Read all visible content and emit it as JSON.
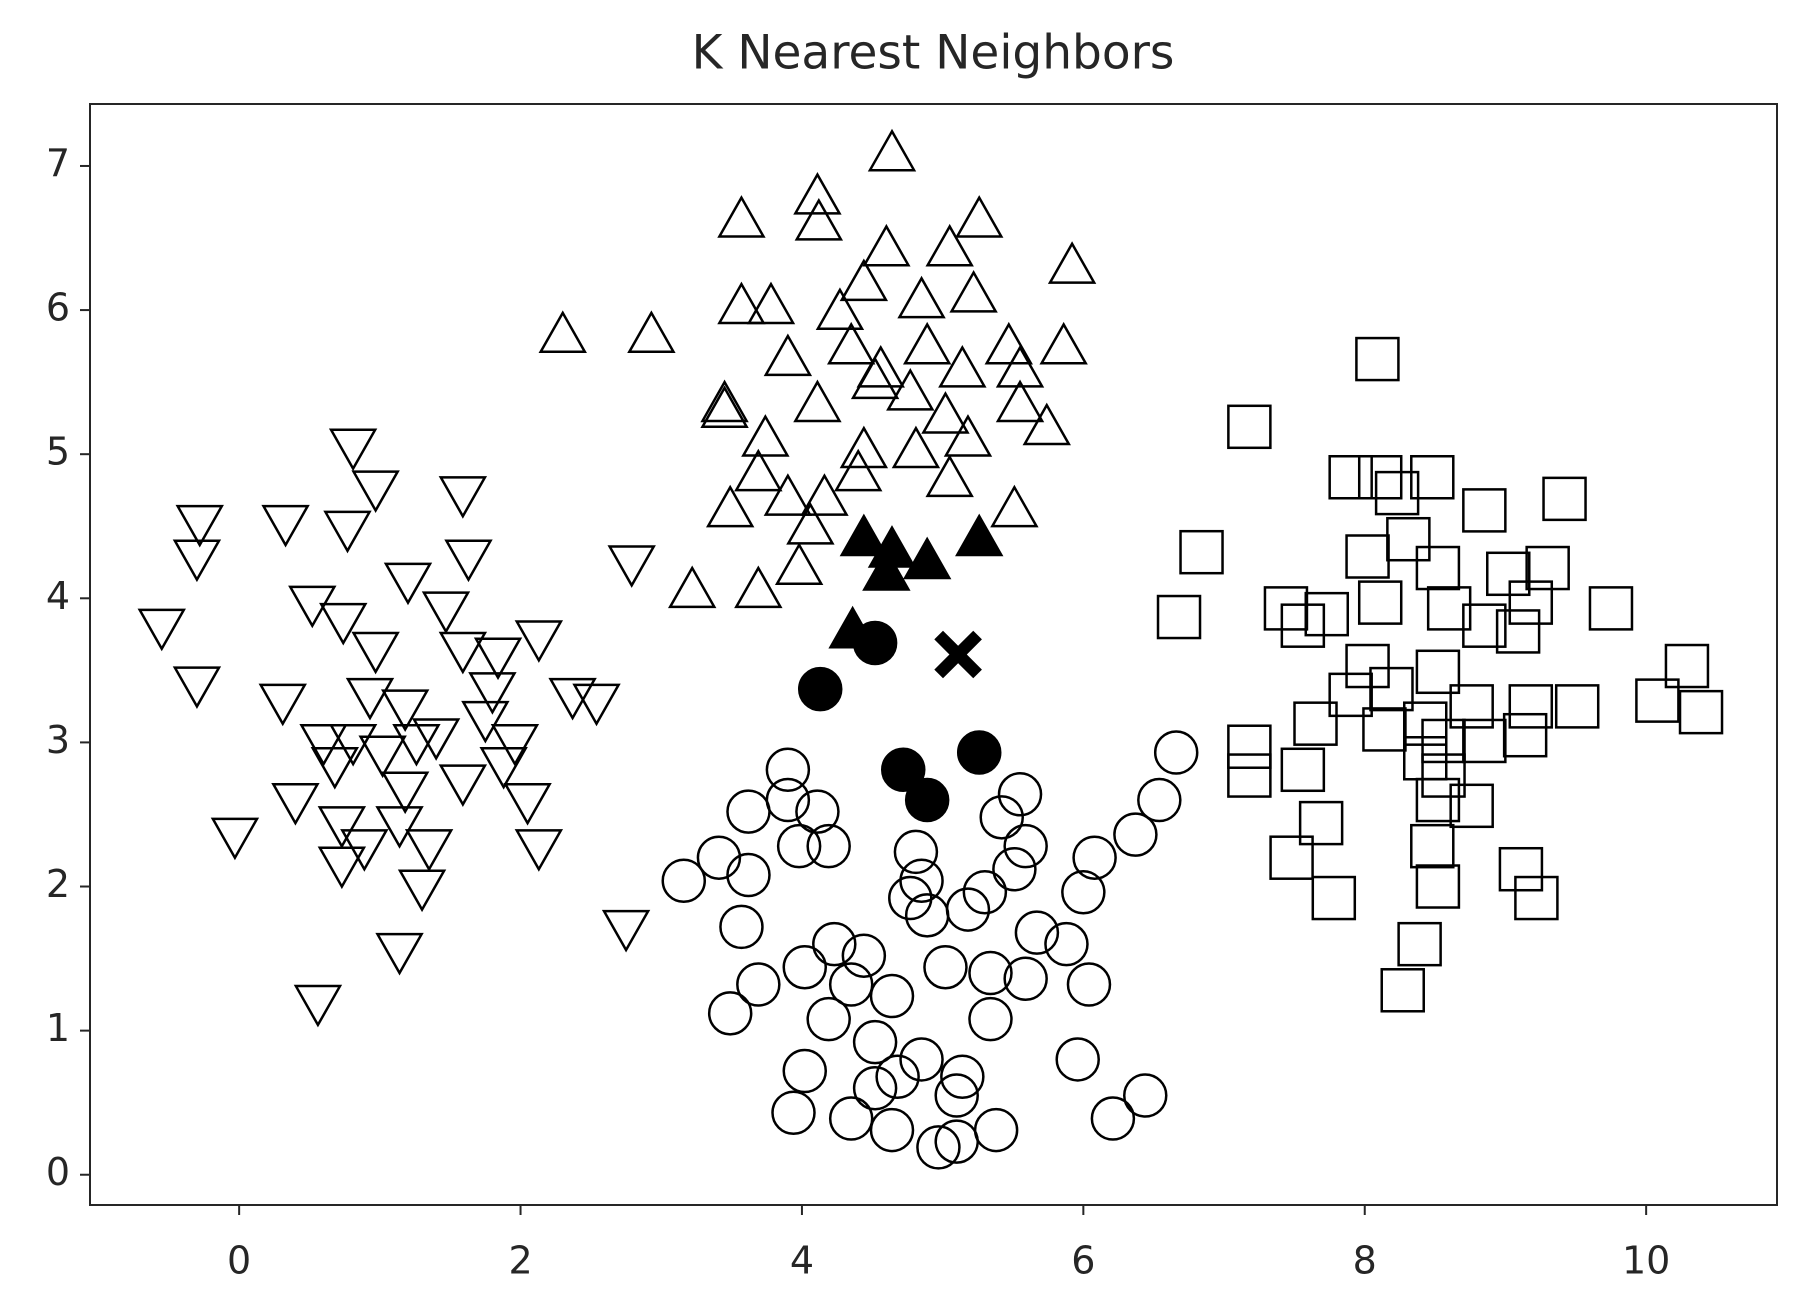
{
  "chart_data": {
    "type": "scatter",
    "title": "K Nearest Neighbors",
    "xlim": [
      -1.06,
      10.93
    ],
    "ylim": [
      -0.21,
      7.43
    ],
    "xticks": [
      0,
      2,
      4,
      6,
      8,
      10
    ],
    "yticks": [
      0,
      1,
      2,
      3,
      4,
      5,
      6,
      7
    ],
    "grid": false,
    "series": [
      {
        "marker": "v",
        "filled": false,
        "color": "#000000",
        "x": [
          -0.28,
          -0.3,
          -0.55,
          -0.3,
          -0.03,
          0.33,
          0.81,
          0.97,
          0.77,
          1.59,
          1.63,
          1.2,
          0.52,
          0.74,
          1.47,
          2.13,
          0.97,
          1.59,
          1.84,
          0.31,
          0.6,
          0.93,
          1.18,
          1.4,
          1.75,
          1.96,
          2.37,
          2.54,
          0.4,
          0.68,
          1.02,
          1.59,
          1.88,
          2.05,
          0.73,
          0.89,
          1.14,
          1.35,
          2.13,
          0.73,
          1.3,
          1.14,
          0.56,
          2.79,
          2.75,
          1.18,
          1.8,
          1.26,
          0.81
        ],
        "y": [
          4.53,
          4.29,
          3.81,
          3.41,
          2.36,
          4.53,
          5.06,
          4.77,
          4.49,
          4.73,
          4.29,
          4.13,
          3.97,
          3.85,
          3.93,
          3.73,
          3.65,
          3.65,
          3.61,
          3.29,
          3.01,
          3.33,
          3.25,
          3.05,
          3.17,
          3.01,
          3.33,
          3.29,
          2.6,
          2.85,
          2.93,
          2.73,
          2.85,
          2.6,
          2.44,
          2.28,
          2.44,
          2.28,
          2.28,
          2.16,
          2.0,
          1.56,
          1.2,
          4.25,
          1.72,
          2.68,
          3.37,
          3.01,
          3.01
        ]
      },
      {
        "marker": "^",
        "filled": false,
        "color": "#000000",
        "x": [
          2.3,
          2.93,
          3.22,
          3.57,
          4.11,
          4.12,
          4.64,
          5.26,
          5.92,
          3.57,
          3.78,
          4.27,
          4.6,
          4.44,
          5.05,
          5.22,
          4.85,
          3.9,
          4.35,
          4.56,
          4.89,
          5.14,
          5.47,
          5.55,
          5.86,
          3.45,
          3.74,
          4.11,
          4.52,
          4.77,
          5.02,
          5.18,
          5.55,
          5.74,
          4.44,
          4.81,
          3.69,
          4.4,
          5.05,
          3.49,
          3.9,
          4.16,
          4.06,
          5.51,
          3.69,
          3.98,
          3.45
        ],
        "y": [
          5.82,
          5.82,
          4.05,
          6.62,
          6.78,
          6.6,
          7.08,
          6.62,
          6.3,
          6.02,
          6.02,
          5.98,
          6.42,
          6.18,
          6.42,
          6.1,
          6.06,
          5.66,
          5.74,
          5.58,
          5.74,
          5.58,
          5.74,
          5.58,
          5.74,
          5.34,
          5.1,
          5.34,
          5.5,
          5.42,
          5.26,
          5.1,
          5.34,
          5.18,
          5.02,
          5.02,
          4.86,
          4.86,
          4.82,
          4.61,
          4.69,
          4.69,
          4.49,
          4.61,
          4.05,
          4.21,
          5.3
        ]
      },
      {
        "marker": "o",
        "filled": false,
        "color": "#000000",
        "x": [
          6.66,
          6.54,
          6.37,
          6.08,
          6.0,
          6.04,
          5.96,
          6.21,
          6.44,
          5.88,
          5.67,
          5.59,
          5.34,
          5.34,
          5.55,
          5.42,
          5.59,
          5.51,
          5.3,
          5.18,
          4.89,
          4.81,
          4.85,
          4.77,
          5.02,
          4.64,
          4.44,
          4.23,
          4.35,
          4.19,
          4.02,
          4.52,
          4.85,
          4.68,
          4.52,
          5.14,
          5.1,
          4.02,
          3.94,
          4.35,
          4.64,
          4.97,
          5.1,
          5.38,
          3.49,
          3.69,
          3.57,
          3.16,
          3.41,
          3.62,
          3.62,
          3.9,
          3.9,
          4.11,
          3.98,
          4.19
        ],
        "y": [
          2.93,
          2.6,
          2.36,
          2.2,
          1.96,
          1.32,
          0.8,
          0.39,
          0.55,
          1.6,
          1.68,
          1.36,
          1.4,
          1.08,
          2.64,
          2.48,
          2.28,
          2.12,
          1.96,
          1.84,
          1.8,
          2.24,
          2.04,
          1.92,
          1.44,
          1.24,
          1.52,
          1.6,
          1.32,
          1.08,
          1.44,
          0.92,
          0.8,
          0.68,
          0.6,
          0.68,
          0.55,
          0.72,
          0.43,
          0.39,
          0.31,
          0.19,
          0.23,
          0.31,
          1.12,
          1.32,
          1.72,
          2.04,
          2.2,
          2.08,
          2.52,
          2.81,
          2.6,
          2.52,
          2.28,
          2.28
        ]
      },
      {
        "marker": "s",
        "filled": false,
        "color": "#000000",
        "x": [
          8.09,
          7.18,
          6.84,
          6.68,
          7.9,
          8.11,
          8.23,
          8.48,
          8.85,
          9.42,
          8.31,
          8.02,
          8.52,
          9.02,
          9.3,
          9.75,
          7.44,
          7.56,
          7.73,
          8.11,
          8.6,
          8.85,
          9.18,
          9.09,
          8.02,
          8.19,
          8.52,
          7.9,
          8.76,
          9.18,
          9.51,
          10.08,
          10.29,
          10.39,
          7.65,
          8.14,
          8.43,
          8.56,
          8.85,
          9.14,
          7.18,
          7.18,
          7.56,
          8.43,
          8.56,
          8.52,
          8.76,
          7.69,
          8.48,
          7.48,
          7.78,
          8.52,
          9.11,
          9.22,
          8.39,
          8.27
        ],
        "y": [
          5.66,
          5.19,
          4.32,
          3.87,
          4.84,
          4.84,
          4.73,
          4.84,
          4.61,
          4.69,
          4.41,
          4.29,
          4.21,
          4.17,
          4.21,
          3.93,
          3.93,
          3.81,
          3.89,
          3.97,
          3.93,
          3.81,
          3.97,
          3.77,
          3.53,
          3.37,
          3.49,
          3.33,
          3.25,
          3.25,
          3.25,
          3.29,
          3.53,
          3.21,
          3.13,
          3.09,
          3.13,
          3.01,
          3.01,
          3.05,
          2.97,
          2.77,
          2.81,
          2.89,
          2.77,
          2.6,
          2.56,
          2.44,
          2.28,
          2.2,
          1.92,
          2.0,
          2.12,
          1.92,
          1.6,
          1.28
        ]
      },
      {
        "marker": "^",
        "filled": true,
        "color": "#000000",
        "x": [
          4.44,
          4.64,
          4.89,
          5.26,
          4.6,
          4.36
        ],
        "y": [
          4.41,
          4.33,
          4.25,
          4.41,
          4.17,
          3.77
        ]
      },
      {
        "marker": "o",
        "filled": true,
        "color": "#000000",
        "x": [
          4.52,
          4.13,
          4.72,
          4.89,
          5.26
        ],
        "y": [
          3.69,
          3.37,
          2.81,
          2.6,
          2.93
        ]
      },
      {
        "marker": "X",
        "filled": true,
        "color": "#000000",
        "x": [
          5.11
        ],
        "y": [
          3.61
        ]
      }
    ]
  }
}
